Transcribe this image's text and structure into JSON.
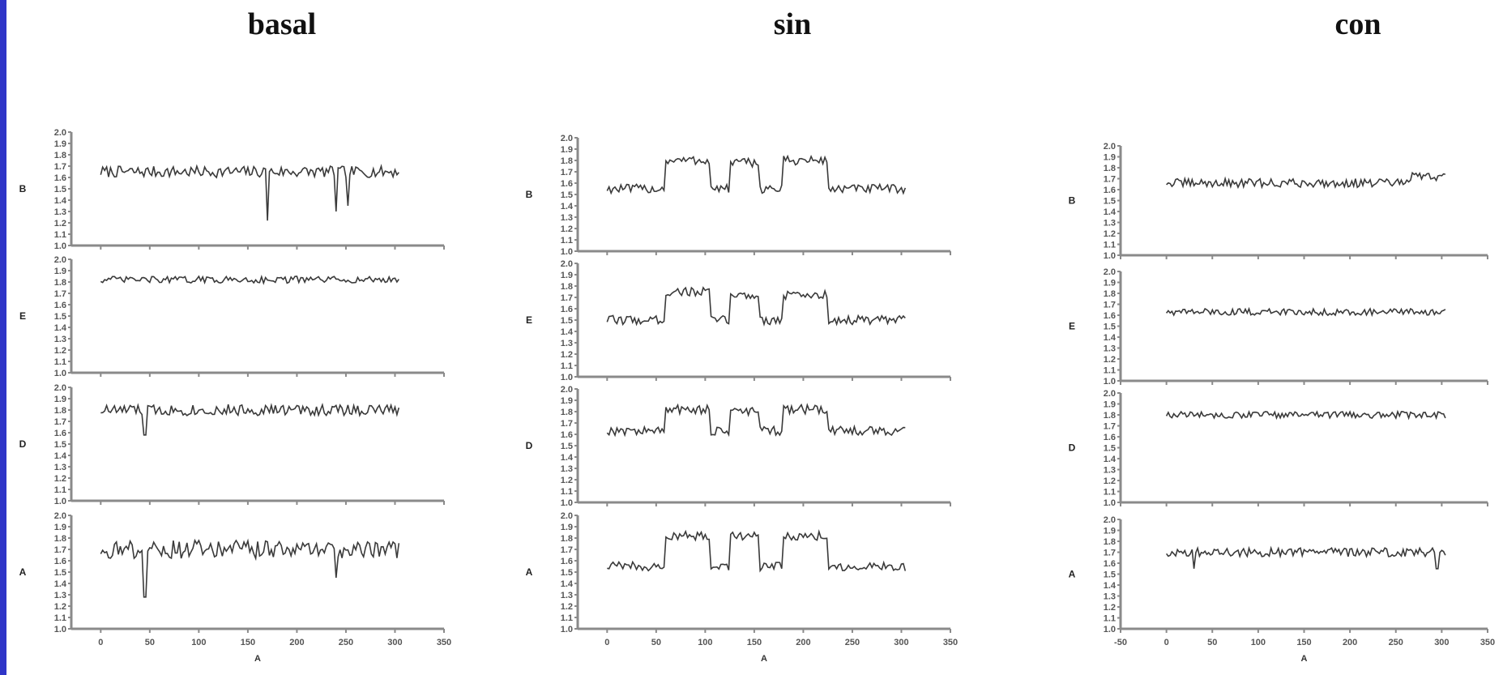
{
  "chart_data": [
    {
      "type": "line",
      "title": "basal",
      "xlabel": "A",
      "xlim": [
        -30,
        350
      ],
      "xticks": [
        "0",
        "50",
        "100",
        "150",
        "200",
        "250",
        "300",
        "350"
      ],
      "ylim": [
        1.0,
        2.0
      ],
      "yticks": [
        "1.0",
        "1.1",
        "1.2",
        "1.3",
        "1.4",
        "1.5",
        "1.6",
        "1.7",
        "1.8",
        "1.9",
        "2.0"
      ],
      "panels": [
        {
          "ylabel": "B",
          "x_range": [
            0,
            305
          ],
          "base": 1.65,
          "noise": 0.05,
          "dips": [
            [
              170,
              1.22
            ],
            [
              240,
              1.3
            ],
            [
              252,
              1.35
            ]
          ],
          "steps": []
        },
        {
          "ylabel": "E",
          "x_range": [
            0,
            305
          ],
          "base": 1.82,
          "noise": 0.03,
          "dips": [],
          "steps": []
        },
        {
          "ylabel": "D",
          "x_range": [
            0,
            305
          ],
          "base": 1.8,
          "noise": 0.05,
          "dips": [
            [
              45,
              1.58
            ]
          ],
          "steps": []
        },
        {
          "ylabel": "A",
          "x_range": [
            0,
            305
          ],
          "base": 1.7,
          "noise": 0.08,
          "dips": [
            [
              45,
              1.28
            ],
            [
              240,
              1.45
            ]
          ],
          "steps": []
        }
      ]
    },
    {
      "type": "line",
      "title": "sin",
      "xlabel": "A",
      "xlim": [
        -30,
        350
      ],
      "xticks": [
        "0",
        "50",
        "100",
        "150",
        "200",
        "250",
        "300",
        "350"
      ],
      "ylim": [
        1.0,
        2.0
      ],
      "yticks": [
        "1.0",
        "1.1",
        "1.2",
        "1.3",
        "1.4",
        "1.5",
        "1.6",
        "1.7",
        "1.8",
        "1.9",
        "2.0"
      ],
      "panels": [
        {
          "ylabel": "B",
          "x_range": [
            0,
            305
          ],
          "base": 1.55,
          "noise": 0.04,
          "dips": [],
          "steps": [
            [
              60,
              105,
              1.8
            ],
            [
              125,
              155,
              1.78
            ],
            [
              180,
              225,
              1.8
            ]
          ]
        },
        {
          "ylabel": "E",
          "x_range": [
            0,
            305
          ],
          "base": 1.5,
          "noise": 0.04,
          "dips": [],
          "steps": [
            [
              60,
              105,
              1.75
            ],
            [
              125,
              155,
              1.72
            ],
            [
              180,
              225,
              1.72
            ]
          ]
        },
        {
          "ylabel": "D",
          "x_range": [
            0,
            305
          ],
          "base": 1.63,
          "noise": 0.04,
          "dips": [],
          "steps": [
            [
              60,
              105,
              1.82
            ],
            [
              125,
              155,
              1.8
            ],
            [
              180,
              225,
              1.82
            ]
          ]
        },
        {
          "ylabel": "A",
          "x_range": [
            0,
            305
          ],
          "base": 1.55,
          "noise": 0.04,
          "dips": [],
          "steps": [
            [
              60,
              105,
              1.82
            ],
            [
              125,
              155,
              1.82
            ],
            [
              180,
              225,
              1.82
            ]
          ]
        }
      ]
    },
    {
      "type": "line",
      "title": "con",
      "xlabel": "A",
      "xlim": [
        -50,
        350
      ],
      "xticks": [
        "-50",
        "0",
        "50",
        "100",
        "150",
        "200",
        "250",
        "300",
        "350"
      ],
      "ylim": [
        1.0,
        2.0
      ],
      "yticks": [
        "1.0",
        "1.1",
        "1.2",
        "1.3",
        "1.4",
        "1.5",
        "1.6",
        "1.7",
        "1.8",
        "1.9",
        "2.0"
      ],
      "panels": [
        {
          "ylabel": "B",
          "x_range": [
            0,
            305
          ],
          "base": 1.66,
          "noise": 0.04,
          "dips": [],
          "steps": [
            [
              265,
              305,
              1.72
            ]
          ]
        },
        {
          "ylabel": "E",
          "x_range": [
            0,
            305
          ],
          "base": 1.63,
          "noise": 0.03,
          "dips": [],
          "steps": []
        },
        {
          "ylabel": "D",
          "x_range": [
            0,
            305
          ],
          "base": 1.8,
          "noise": 0.03,
          "dips": [],
          "steps": []
        },
        {
          "ylabel": "A",
          "x_range": [
            0,
            305
          ],
          "base": 1.7,
          "noise": 0.04,
          "dips": [
            [
              30,
              1.55
            ],
            [
              295,
              1.55
            ]
          ],
          "steps": []
        }
      ]
    }
  ]
}
